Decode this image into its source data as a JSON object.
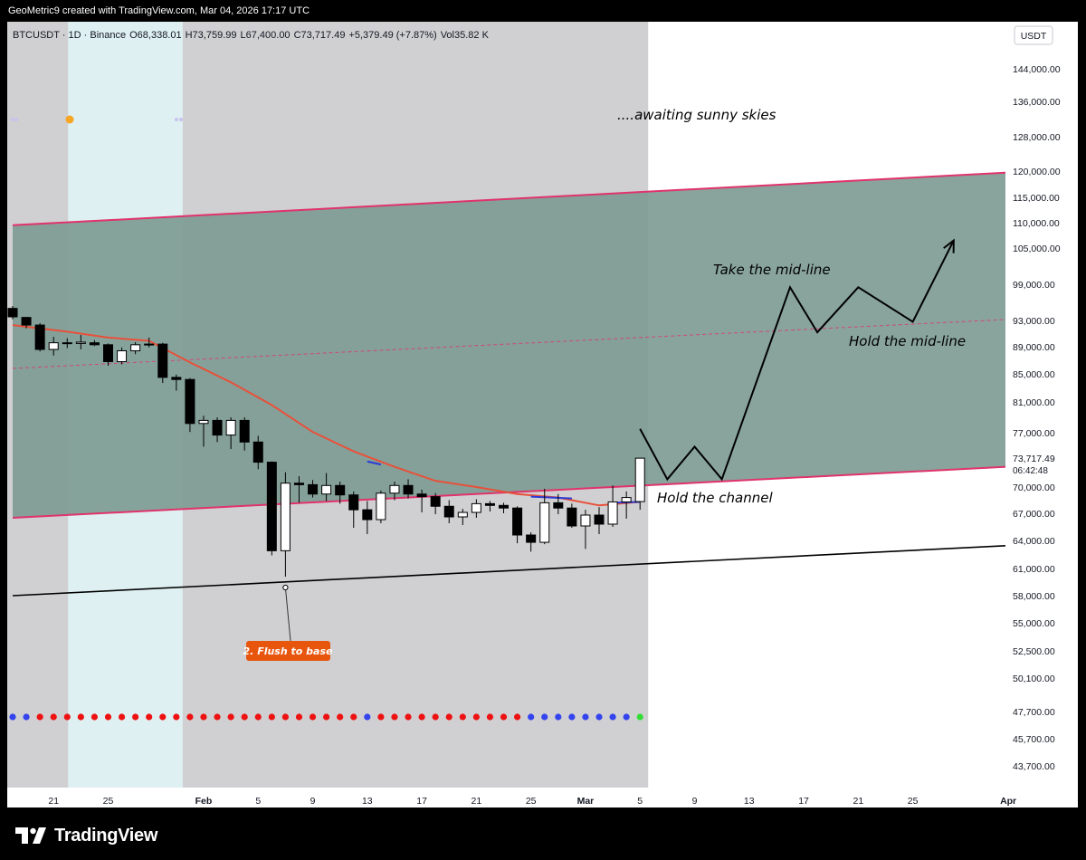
{
  "header": {
    "credit": "GeoMetric9 created with TradingView.com, Mar 04, 2026 17:17 UTC"
  },
  "legend": {
    "symbol": "BTCUSDT · 1D · Binance",
    "open": "O68,338.01",
    "high": "H73,759.99",
    "low": "L67,400.00",
    "close": "C73,717.49",
    "change": "+5,379.49 (+7.87%)",
    "volume": "Vol35.82 K"
  },
  "currency": "USDT",
  "last_price": {
    "label": "73,717.49",
    "countdown": "06:42:48"
  },
  "brand": {
    "name": "TradingView"
  },
  "annotations": {
    "sunny": "....awaiting sunny skies",
    "take_mid": "Take the mid-line",
    "hold_mid": "Hold the mid-line",
    "hold_channel": "Hold the channel",
    "flush": "2. Flush to base"
  },
  "colors": {
    "channel_fill": "#7c9a91",
    "channel_line": "#e0336b",
    "up_candle": "#ffffff",
    "down_candle": "#000000",
    "ma_line": "#e8503a",
    "ma_blue": "#2a3bd6",
    "dot_red": "#ee1111",
    "dot_blue": "#3344ee",
    "dot_green": "#33dd33",
    "callout": "#e8560e",
    "history_shade": "#b0b0b4",
    "highlight_band": "#dff0f3"
  },
  "chart_data": {
    "type": "candlestick",
    "symbol": "BTCUSDT",
    "timeframe": "1D",
    "exchange": "Binance",
    "y_ticks": [
      144000,
      136000,
      128000,
      120000,
      115000,
      110000,
      105000,
      99000,
      93000,
      89000,
      85000,
      81000,
      77000,
      70000,
      67000,
      64000,
      61000,
      58000,
      55000,
      52500,
      50100,
      47700,
      45700,
      43700
    ],
    "y_tick_labels": [
      "144,000.00",
      "136,000.00",
      "128,000.00",
      "120,000.00",
      "115,000.00",
      "110,000.00",
      "105,000.00",
      "99,000.00",
      "93,000.00",
      "89,000.00",
      "85,000.00",
      "81,000.00",
      "77,000.00",
      "70,000.00",
      "67,000.00",
      "64,000.00",
      "61,000.00",
      "58,000.00",
      "55,000.00",
      "52,500.00",
      "50,100.00",
      "47,700.00",
      "45,700.00",
      "43,700.00"
    ],
    "x_ticks": [
      "21",
      "25",
      "Feb",
      "5",
      "9",
      "13",
      "17",
      "21",
      "25",
      "Mar",
      "5",
      "9",
      "13",
      "17",
      "21",
      "25",
      "Apr"
    ],
    "x_tick_dates": [
      "2026-01-21",
      "2026-01-25",
      "2026-02-01",
      "2026-02-05",
      "2026-02-09",
      "2026-02-13",
      "2026-02-17",
      "2026-02-21",
      "2026-02-25",
      "2026-03-01",
      "2026-03-05",
      "2026-03-09",
      "2026-03-13",
      "2026-03-17",
      "2026-03-21",
      "2026-03-25",
      "2026-04-01"
    ],
    "first_candle_date": "2026-01-18",
    "candles": [
      {
        "d": "2026-01-18",
        "o": 95000,
        "h": 95400,
        "l": 93200,
        "c": 93600
      },
      {
        "d": "2026-01-19",
        "o": 93500,
        "h": 93600,
        "l": 91800,
        "c": 92300
      },
      {
        "d": "2026-01-20",
        "o": 92300,
        "h": 92600,
        "l": 88300,
        "c": 88600
      },
      {
        "d": "2026-01-21",
        "o": 88600,
        "h": 90500,
        "l": 87700,
        "c": 89600
      },
      {
        "d": "2026-01-22",
        "o": 89600,
        "h": 90300,
        "l": 88800,
        "c": 89500
      },
      {
        "d": "2026-01-23",
        "o": 89500,
        "h": 90800,
        "l": 88600,
        "c": 89700
      },
      {
        "d": "2026-01-24",
        "o": 89600,
        "h": 90000,
        "l": 89100,
        "c": 89300
      },
      {
        "d": "2026-01-25",
        "o": 89300,
        "h": 89500,
        "l": 86200,
        "c": 86800
      },
      {
        "d": "2026-01-26",
        "o": 86800,
        "h": 88900,
        "l": 86400,
        "c": 88400
      },
      {
        "d": "2026-01-27",
        "o": 88400,
        "h": 89700,
        "l": 87900,
        "c": 89300
      },
      {
        "d": "2026-01-28",
        "o": 89300,
        "h": 90400,
        "l": 88900,
        "c": 89400
      },
      {
        "d": "2026-01-29",
        "o": 89400,
        "h": 89600,
        "l": 83700,
        "c": 84500
      },
      {
        "d": "2026-01-30",
        "o": 84500,
        "h": 84900,
        "l": 82600,
        "c": 84200
      },
      {
        "d": "2026-01-31",
        "o": 84200,
        "h": 84400,
        "l": 77100,
        "c": 78200
      },
      {
        "d": "2026-02-01",
        "o": 78200,
        "h": 79200,
        "l": 75200,
        "c": 78600
      },
      {
        "d": "2026-02-02",
        "o": 78600,
        "h": 79000,
        "l": 75800,
        "c": 76700
      },
      {
        "d": "2026-02-03",
        "o": 76700,
        "h": 79000,
        "l": 74900,
        "c": 78600
      },
      {
        "d": "2026-02-04",
        "o": 78600,
        "h": 79000,
        "l": 74700,
        "c": 75800
      },
      {
        "d": "2026-02-05",
        "o": 75800,
        "h": 76600,
        "l": 72300,
        "c": 73200
      },
      {
        "d": "2026-02-06",
        "o": 73200,
        "h": 73300,
        "l": 62400,
        "c": 62900
      },
      {
        "d": "2026-02-07",
        "o": 62900,
        "h": 71900,
        "l": 60100,
        "c": 70500
      },
      {
        "d": "2026-02-08",
        "o": 70500,
        "h": 71400,
        "l": 68200,
        "c": 70300
      },
      {
        "d": "2026-02-09",
        "o": 70300,
        "h": 70900,
        "l": 68800,
        "c": 69200
      },
      {
        "d": "2026-02-10",
        "o": 69200,
        "h": 71800,
        "l": 68400,
        "c": 70200
      },
      {
        "d": "2026-02-11",
        "o": 70200,
        "h": 70700,
        "l": 68100,
        "c": 69100
      },
      {
        "d": "2026-02-12",
        "o": 69100,
        "h": 69500,
        "l": 65400,
        "c": 67400
      },
      {
        "d": "2026-02-13",
        "o": 67400,
        "h": 68400,
        "l": 64700,
        "c": 66300
      },
      {
        "d": "2026-02-14",
        "o": 66300,
        "h": 69600,
        "l": 65900,
        "c": 69300
      },
      {
        "d": "2026-02-15",
        "o": 69300,
        "h": 70700,
        "l": 68500,
        "c": 70200
      },
      {
        "d": "2026-02-16",
        "o": 70200,
        "h": 71000,
        "l": 68700,
        "c": 69200
      },
      {
        "d": "2026-02-17",
        "o": 69200,
        "h": 69700,
        "l": 67100,
        "c": 68900
      },
      {
        "d": "2026-02-18",
        "o": 68900,
        "h": 69300,
        "l": 66900,
        "c": 67800
      },
      {
        "d": "2026-02-19",
        "o": 67800,
        "h": 68500,
        "l": 65900,
        "c": 66600
      },
      {
        "d": "2026-02-20",
        "o": 66600,
        "h": 67500,
        "l": 65700,
        "c": 67100
      },
      {
        "d": "2026-02-21",
        "o": 67100,
        "h": 68600,
        "l": 66500,
        "c": 68100
      },
      {
        "d": "2026-02-22",
        "o": 68100,
        "h": 68400,
        "l": 67200,
        "c": 67900
      },
      {
        "d": "2026-02-23",
        "o": 67900,
        "h": 68200,
        "l": 67000,
        "c": 67600
      },
      {
        "d": "2026-02-24",
        "o": 67600,
        "h": 67800,
        "l": 63700,
        "c": 64600
      },
      {
        "d": "2026-02-25",
        "o": 64600,
        "h": 64900,
        "l": 62800,
        "c": 63800
      },
      {
        "d": "2026-02-26",
        "o": 63800,
        "h": 69800,
        "l": 63600,
        "c": 68200
      },
      {
        "d": "2026-02-27",
        "o": 68200,
        "h": 69200,
        "l": 66900,
        "c": 67600
      },
      {
        "d": "2026-02-28",
        "o": 67600,
        "h": 68100,
        "l": 65400,
        "c": 65600
      },
      {
        "d": "2026-03-01",
        "o": 65600,
        "h": 67400,
        "l": 63100,
        "c": 66800
      },
      {
        "d": "2026-03-02",
        "o": 66800,
        "h": 67700,
        "l": 64700,
        "c": 65800
      },
      {
        "d": "2026-03-03",
        "o": 65800,
        "h": 70200,
        "l": 65500,
        "c": 68300
      },
      {
        "d": "2026-03-04",
        "o": 68300,
        "h": 69500,
        "l": 66400,
        "c": 68800
      },
      {
        "d": "2026-03-05",
        "o": 68338.01,
        "h": 73759.99,
        "l": 67400,
        "c": 73717.49
      }
    ],
    "moving_average": [
      {
        "d": "2026-01-18",
        "v": 92300
      },
      {
        "d": "2026-01-22",
        "v": 91300
      },
      {
        "d": "2026-01-25",
        "v": 90400
      },
      {
        "d": "2026-01-28",
        "v": 89900
      },
      {
        "d": "2026-01-31",
        "v": 86700
      },
      {
        "d": "2026-02-03",
        "v": 83800
      },
      {
        "d": "2026-02-06",
        "v": 80600
      },
      {
        "d": "2026-02-09",
        "v": 77100
      },
      {
        "d": "2026-02-12",
        "v": 74600
      },
      {
        "d": "2026-02-15",
        "v": 72600
      },
      {
        "d": "2026-02-18",
        "v": 70800
      },
      {
        "d": "2026-02-21",
        "v": 70000
      },
      {
        "d": "2026-02-24",
        "v": 69200
      },
      {
        "d": "2026-02-27",
        "v": 68800
      },
      {
        "d": "2026-03-02",
        "v": 67900
      },
      {
        "d": "2026-03-05",
        "v": 68300
      }
    ],
    "channel": {
      "upper": [
        {
          "d": "2026-01-18",
          "v": 109500
        },
        {
          "d": "2026-04-03",
          "v": 120000
        }
      ],
      "lower": [
        {
          "d": "2026-01-18",
          "v": 66500
        },
        {
          "d": "2026-04-03",
          "v": 72800
        }
      ],
      "mid": [
        {
          "d": "2026-01-18",
          "v": 85800
        },
        {
          "d": "2026-04-03",
          "v": 93400
        }
      ]
    },
    "support_line": [
      {
        "d": "2026-01-18",
        "v": 58000
      },
      {
        "d": "2026-04-03",
        "v": 63600
      }
    ],
    "projection_path": [
      {
        "d": "2026-03-05",
        "v": 77500
      },
      {
        "d": "2026-03-07",
        "v": 71000
      },
      {
        "d": "2026-03-09",
        "v": 75200
      },
      {
        "d": "2026-03-11",
        "v": 71000
      },
      {
        "d": "2026-03-16",
        "v": 98500
      },
      {
        "d": "2026-03-18",
        "v": 91200
      },
      {
        "d": "2026-03-21",
        "v": 98500
      },
      {
        "d": "2026-03-25",
        "v": 92800
      },
      {
        "d": "2026-03-28",
        "v": 106500
      }
    ],
    "dots": [
      "b",
      "b",
      "r",
      "r",
      "r",
      "r",
      "r",
      "r",
      "r",
      "r",
      "r",
      "r",
      "r",
      "r",
      "r",
      "r",
      "r",
      "r",
      "r",
      "r",
      "r",
      "r",
      "r",
      "r",
      "r",
      "r",
      "b",
      "r",
      "r",
      "r",
      "r",
      "r",
      "r",
      "r",
      "r",
      "r",
      "r",
      "r",
      "b",
      "b",
      "b",
      "b",
      "b",
      "b",
      "b",
      "b",
      "g"
    ]
  }
}
